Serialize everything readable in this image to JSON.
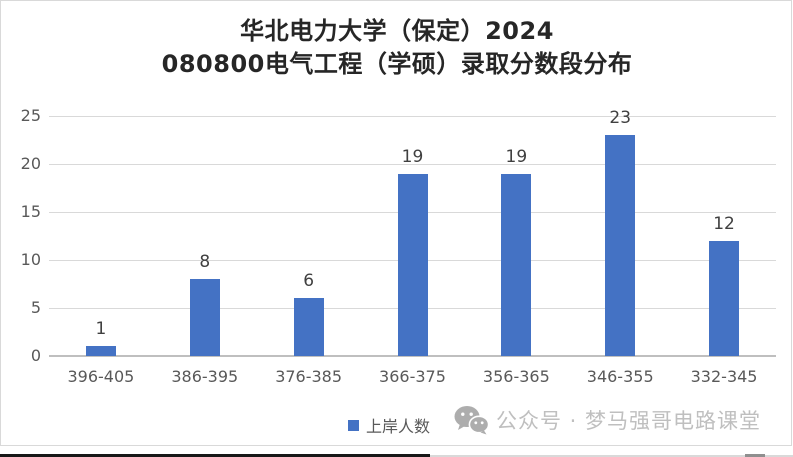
{
  "title": {
    "line1": "华北电力大学（保定）2024",
    "line2": "080800电气工程（学硕）录取分数段分布"
  },
  "legend": {
    "label": "上岸人数",
    "swatch_color": "#4472C4"
  },
  "watermark": {
    "icon": "wechat-icon",
    "text": "公众号 · 梦马强哥电路课堂"
  },
  "colors": {
    "bar": "#4472C4",
    "gridline": "#D9D9D9",
    "axis_line": "#BFBFBF",
    "tick_label": "#595959",
    "value_label": "#404040",
    "title_text": "#262626",
    "watermark_gray": "#BFBFBF",
    "frame_border": "#D9D9D9"
  },
  "chart_data": {
    "type": "bar",
    "title": "华北电力大学（保定）2024 080800电气工程（学硕）录取分数段分布",
    "categories": [
      "396-405",
      "386-395",
      "376-385",
      "366-375",
      "356-365",
      "346-355",
      "332-345"
    ],
    "series": [
      {
        "name": "上岸人数",
        "values": [
          1,
          8,
          6,
          19,
          19,
          23,
          12
        ]
      }
    ],
    "data_labels": [
      1,
      8,
      6,
      19,
      19,
      23,
      12
    ],
    "xlabel": "",
    "ylabel": "",
    "ylim": [
      0,
      25
    ],
    "yticks": [
      0,
      5,
      10,
      15,
      20,
      25
    ],
    "grid": true,
    "legend_position": "bottom",
    "bar_color": "#4472C4"
  }
}
